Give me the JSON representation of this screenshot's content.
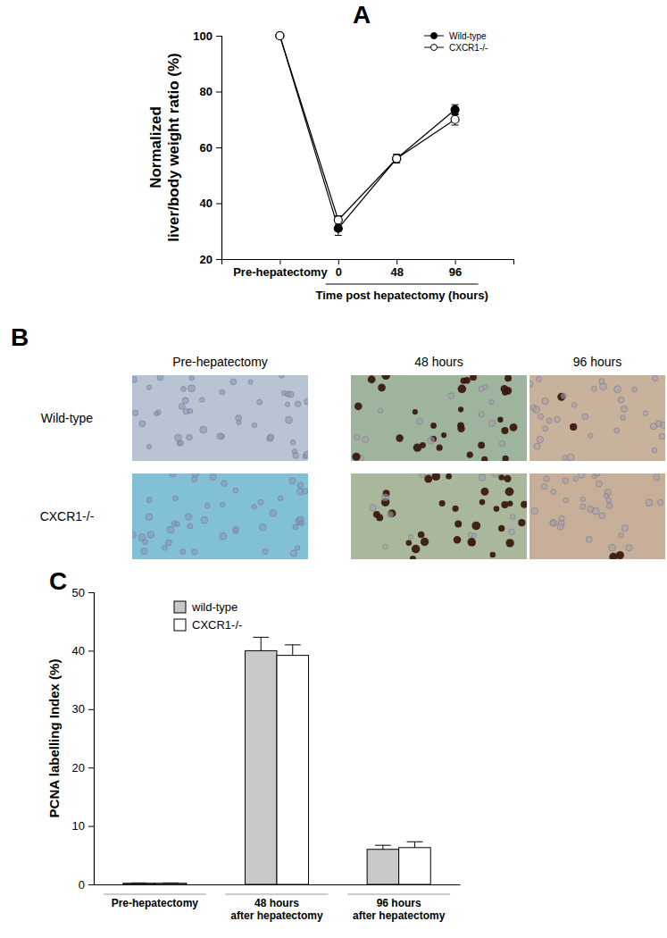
{
  "chart_data": [
    {
      "type": "line",
      "title": "A",
      "x_label": "Time post hepatectomy (hours)",
      "y_label": [
        "Normalized",
        "liver/body weight ratio (%)"
      ],
      "categories": [
        "Pre-hepatectomy",
        "0",
        "48",
        "96"
      ],
      "series": [
        {
          "name": "Wild-type",
          "color": "#000000",
          "marker": "filled-circle",
          "values": [
            100,
            31,
            56,
            73.5
          ],
          "errors": [
            0,
            2.5,
            1.5,
            1.8
          ]
        },
        {
          "name": "CXCR1-/-",
          "color": "#000000",
          "marker": "open-circle",
          "values": [
            100,
            34,
            56,
            70
          ],
          "errors": [
            0,
            1.5,
            1.5,
            2
          ]
        }
      ],
      "ylim": [
        20,
        100
      ],
      "yticks": [
        20,
        40,
        60,
        80,
        100
      ],
      "legend": "upper right"
    },
    {
      "type": "bar",
      "title": "C",
      "y_label": "PCNA labelling Index (%)",
      "categories": [
        "Pre-hepatectomy",
        "48 hours\nafter hepatectomy",
        "96 hours\nafter hepatectomy"
      ],
      "series": [
        {
          "name": "wild-type",
          "color": "#c8c8c8",
          "values": [
            0.2,
            40,
            6
          ],
          "errors": [
            0.05,
            2.3,
            0.7
          ]
        },
        {
          "name": "CXCR1-/-",
          "color": "#ffffff",
          "values": [
            0.2,
            39.2,
            6.3
          ],
          "errors": [
            0.05,
            1.8,
            1
          ]
        }
      ],
      "ylim": [
        0,
        50
      ],
      "yticks": [
        0,
        10,
        20,
        30,
        40,
        50
      ],
      "legend": "upper left"
    }
  ],
  "image_grid": {
    "title": "B",
    "columns": [
      "Pre-hepatectomy",
      "48 hours",
      "96 hours"
    ],
    "rows": [
      "Wild-type",
      "CXCR1-/-"
    ]
  }
}
